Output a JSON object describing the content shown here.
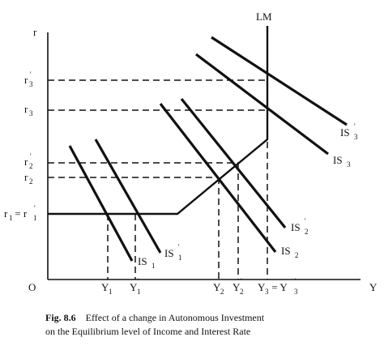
{
  "axes": {
    "y_label": "r",
    "x_label": "Y",
    "origin_label": "O"
  },
  "curves": {
    "lm": "LM",
    "is1": "IS",
    "is1_sub": "1",
    "is1p": "IS",
    "is1p_sub": "1",
    "is1p_sup": "'",
    "is2": "IS",
    "is2_sub": "2",
    "is2p": "IS",
    "is2p_sub": "2",
    "is2p_sup": "'",
    "is3": "IS",
    "is3_sub": "3",
    "is3p": "IS",
    "is3p_sub": "3",
    "is3p_sup": "'"
  },
  "y_ticks": {
    "r3p": "r",
    "r3p_sub": "3",
    "r3p_sup": "'",
    "r3": "r",
    "r3_sub": "3",
    "r2p": "r",
    "r2p_sub": "2",
    "r2p_sup": "'",
    "r2": "r",
    "r2_sub": "2",
    "r1": "r",
    "r1_sub": "1",
    "r1_eq": " = r",
    "r1p_sub": "1",
    "r1p_sup": "'"
  },
  "x_ticks": {
    "y1": "Y",
    "y1_sub": "1",
    "y1p": "Y",
    "y1p_sub": "1",
    "y1p_sup": "'",
    "y2": "Y",
    "y2_sub": "2",
    "y2p": "Y",
    "y2p_sub": "2",
    "y2p_sup": "'",
    "y3": "Y",
    "y3_sub": "3",
    "y3_eq": " = Y",
    "y3p_sub": "3",
    "y3p_sup": "'"
  },
  "caption": {
    "fig_label": "Fig. 8.6",
    "line1": "Effect of a change in Autonomous Investment",
    "line2": "on the Equilibrium level of Income and Interest Rate"
  }
}
